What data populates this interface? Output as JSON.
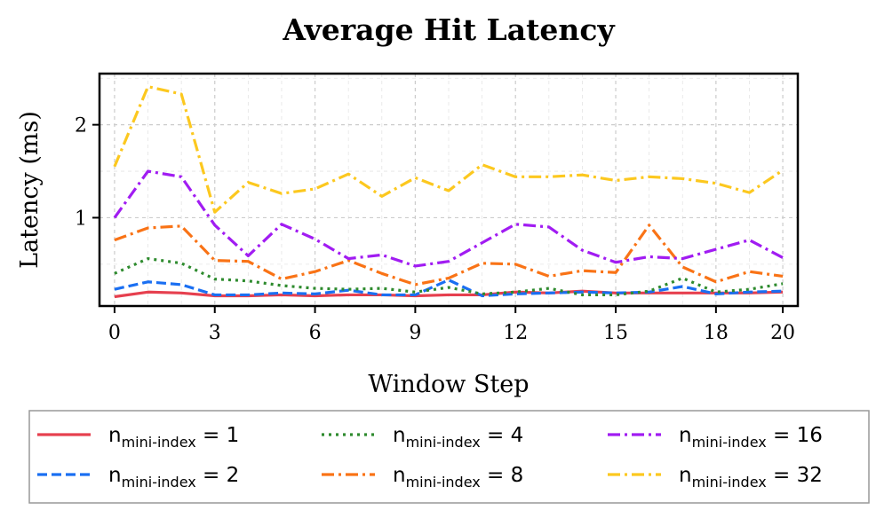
{
  "chart_data": {
    "type": "line",
    "title": "Average Hit Latency",
    "xlabel": "Window Step",
    "ylabel": "Latency (ms)",
    "xlim": [
      -0.45,
      20.45
    ],
    "ylim": [
      0.05,
      2.55
    ],
    "xticks": [
      0,
      3,
      6,
      9,
      12,
      15,
      18,
      20
    ],
    "yticks": [
      1,
      2
    ],
    "grid": true,
    "legend_position": "bottom-center",
    "x": [
      0,
      1,
      2,
      3,
      4,
      5,
      6,
      7,
      8,
      9,
      10,
      11,
      12,
      13,
      14,
      15,
      16,
      17,
      18,
      19,
      20
    ],
    "legend_prefix": "n",
    "legend_subscript": "mini-index",
    "series": [
      {
        "name": "1",
        "color": "#e6404f",
        "dash": "solid",
        "values": [
          0.15,
          0.2,
          0.19,
          0.16,
          0.16,
          0.17,
          0.16,
          0.17,
          0.17,
          0.16,
          0.17,
          0.17,
          0.2,
          0.19,
          0.21,
          0.19,
          0.19,
          0.19,
          0.19,
          0.19,
          0.2
        ]
      },
      {
        "name": "2",
        "color": "#1a6ff2",
        "dash": "dashed",
        "values": [
          0.23,
          0.31,
          0.28,
          0.17,
          0.17,
          0.19,
          0.18,
          0.22,
          0.17,
          0.17,
          0.33,
          0.16,
          0.18,
          0.19,
          0.2,
          0.19,
          0.2,
          0.26,
          0.18,
          0.2,
          0.21
        ]
      },
      {
        "name": "4",
        "color": "#2e8b2e",
        "dash": "dotted",
        "values": [
          0.4,
          0.56,
          0.51,
          0.34,
          0.32,
          0.27,
          0.24,
          0.23,
          0.24,
          0.2,
          0.25,
          0.18,
          0.2,
          0.24,
          0.17,
          0.17,
          0.21,
          0.35,
          0.2,
          0.23,
          0.29
        ]
      },
      {
        "name": "8",
        "color": "#f97316",
        "dash": "dashdot",
        "values": [
          0.76,
          0.89,
          0.91,
          0.54,
          0.53,
          0.34,
          0.42,
          0.54,
          0.4,
          0.28,
          0.35,
          0.51,
          0.5,
          0.37,
          0.43,
          0.41,
          0.92,
          0.47,
          0.31,
          0.42,
          0.37
        ]
      },
      {
        "name": "16",
        "color": "#a11cf2",
        "dash": "dashdot",
        "values": [
          1.0,
          1.5,
          1.44,
          0.92,
          0.59,
          0.93,
          0.77,
          0.56,
          0.6,
          0.48,
          0.53,
          0.73,
          0.93,
          0.9,
          0.65,
          0.52,
          0.58,
          0.56,
          0.66,
          0.76,
          0.57
        ]
      },
      {
        "name": "32",
        "color": "#fcc81f",
        "dash": "dashdot",
        "values": [
          1.55,
          2.41,
          2.33,
          1.06,
          1.38,
          1.26,
          1.31,
          1.47,
          1.23,
          1.43,
          1.29,
          1.57,
          1.44,
          1.44,
          1.46,
          1.4,
          1.44,
          1.42,
          1.37,
          1.27,
          1.51
        ]
      }
    ]
  }
}
